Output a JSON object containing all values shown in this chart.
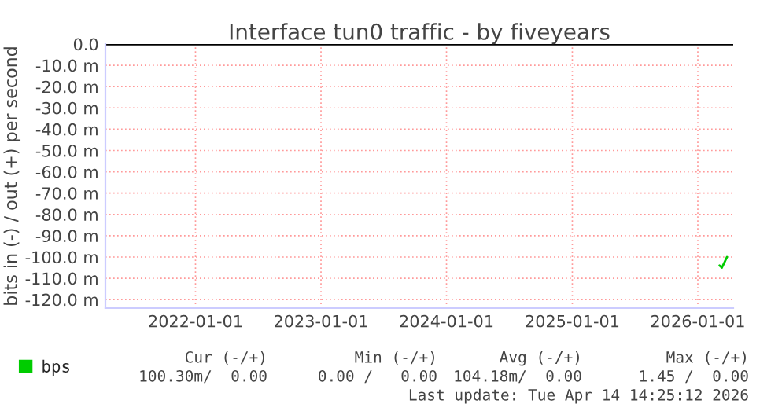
{
  "chart_data": {
    "type": "line",
    "title": "Interface tun0 traffic - by fiveyears",
    "ylabel": "bits in (-) / out (+) per second",
    "series": [
      {
        "name": "bps",
        "color": "#00cc00",
        "x": [
          "2026-03-05",
          "2026-03-12",
          "2026-03-18",
          "2026-03-27"
        ],
        "values": [
          -104,
          -105,
          -103,
          -100
        ]
      }
    ],
    "xlim": [
      "2021-04-14",
      "2026-04-14"
    ],
    "xticks": [
      {
        "value": "2022-01-01",
        "label": "2022-01-01"
      },
      {
        "value": "2023-01-01",
        "label": "2023-01-01"
      },
      {
        "value": "2024-01-01",
        "label": "2024-01-01"
      },
      {
        "value": "2025-01-01",
        "label": "2025-01-01"
      },
      {
        "value": "2026-01-01",
        "label": "2026-01-01"
      }
    ],
    "ylim": [
      -124,
      0
    ],
    "yticks": [
      {
        "value": 0,
        "label": "0.0"
      },
      {
        "value": -10,
        "label": "-10.0 m"
      },
      {
        "value": -20,
        "label": "-20.0 m"
      },
      {
        "value": -30,
        "label": "-30.0 m"
      },
      {
        "value": -40,
        "label": "-40.0 m"
      },
      {
        "value": -50,
        "label": "-50.0 m"
      },
      {
        "value": -60,
        "label": "-60.0 m"
      },
      {
        "value": -70,
        "label": "-70.0 m"
      },
      {
        "value": -80,
        "label": "-80.0 m"
      },
      {
        "value": -90,
        "label": "-90.0 m"
      },
      {
        "value": -100,
        "label": "-100.0 m"
      },
      {
        "value": -110,
        "label": "-110.0 m"
      },
      {
        "value": -120,
        "label": "-120.0 m"
      }
    ],
    "ref_lines": [
      {
        "axis": "y",
        "value": 0,
        "color": "#000000"
      }
    ],
    "grid": true,
    "legend": "bottom left",
    "annotations": [
      "Cur (-/+)",
      "Min (-/+)",
      "Avg (-/+)",
      "Max (-/+)",
      "100.30m/  0.00",
      "0.00 /   0.00",
      "104.18m/  0.00",
      "1.45 /  0.00",
      "Last update: Tue Apr 14 14:25:12 2026"
    ]
  }
}
